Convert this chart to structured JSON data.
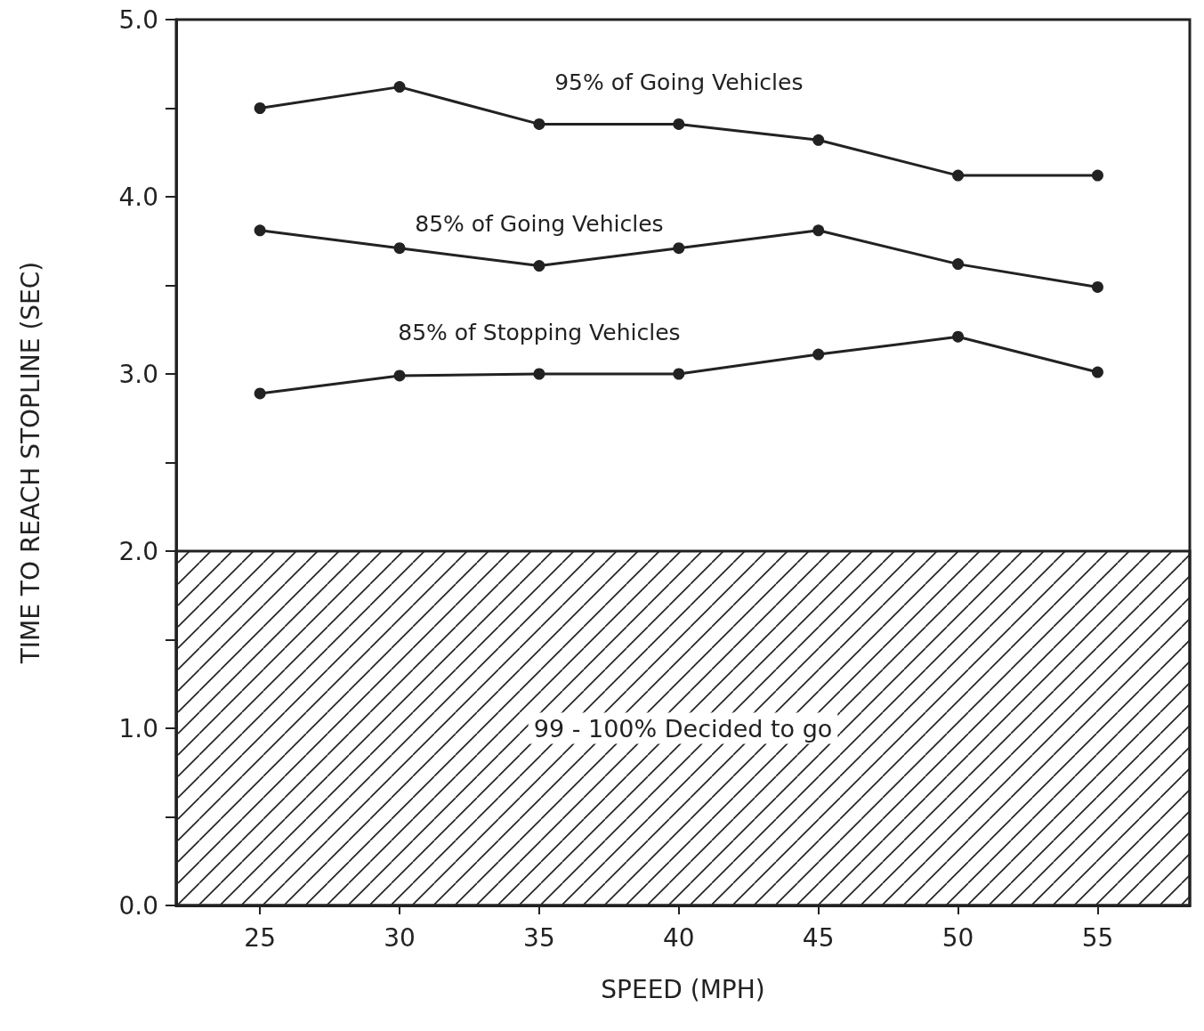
{
  "chart_data": {
    "type": "line",
    "xlabel": "SPEED (MPH)",
    "ylabel": "TIME TO REACH STOPLINE (SEC)",
    "x": [
      25,
      30,
      35,
      40,
      45,
      50,
      55
    ],
    "series": [
      {
        "name": "95% of Going Vehicles",
        "color": "#222222",
        "values": [
          4.5,
          4.62,
          4.41,
          4.41,
          4.32,
          4.12,
          4.12
        ]
      },
      {
        "name": "85% of Going Vehicles",
        "color": "#222222",
        "values": [
          3.81,
          3.71,
          3.61,
          3.71,
          3.81,
          3.62,
          3.49
        ]
      },
      {
        "name": "85% of Stopping Vehicles",
        "color": "#222222",
        "values": [
          2.89,
          2.99,
          3.0,
          3.0,
          3.11,
          3.21,
          3.01
        ]
      }
    ],
    "xlim": [
      22,
      58.3
    ],
    "xticks": [
      25,
      30,
      35,
      40,
      45,
      50,
      55
    ],
    "ylim": [
      0,
      5
    ],
    "yticks": [
      {
        "value": 0,
        "label": "0.0"
      },
      {
        "value": 0.5,
        "label": null
      },
      {
        "value": 1,
        "label": "1.0"
      },
      {
        "value": 1.5,
        "label": null
      },
      {
        "value": 2,
        "label": "2.0"
      },
      {
        "value": 2.5,
        "label": null
      },
      {
        "value": 3,
        "label": "3.0"
      },
      {
        "value": 3.5,
        "label": null
      },
      {
        "value": 4,
        "label": "4.0"
      },
      {
        "value": 4.5,
        "label": null
      },
      {
        "value": 5,
        "label": "5.0"
      }
    ],
    "bands": [
      {
        "axis": "y",
        "from": 0,
        "to": 2,
        "label": "99 - 100% Decided to go",
        "color": "#222222"
      }
    ],
    "legend": false,
    "grid": false,
    "marker": "circle",
    "line_style": "solid"
  }
}
